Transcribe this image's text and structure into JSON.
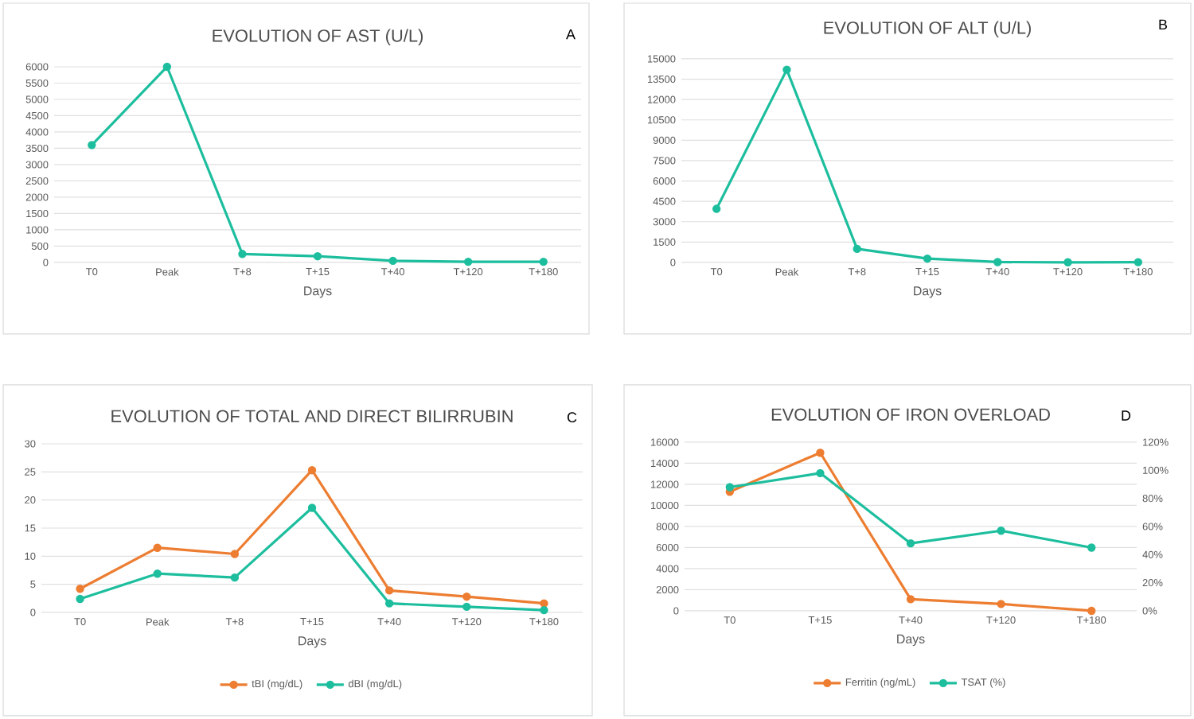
{
  "chart_data": [
    {
      "type": "line",
      "title": "EVOLUTION OF AST (U/L)",
      "xlabel": "Days",
      "annotations": [
        "A"
      ],
      "categories": [
        "T0",
        "Peak",
        "T+8",
        "T+15",
        "T+40",
        "T+120",
        "T+180"
      ],
      "series": [
        {
          "color": "#1dbe9e",
          "values": [
            3600,
            6000,
            260,
            190,
            50,
            20,
            20
          ]
        }
      ],
      "ylim": [
        0,
        6000
      ],
      "yticks": [
        0,
        500,
        1000,
        1500,
        2000,
        2500,
        3000,
        3500,
        4000,
        4500,
        5000,
        5500,
        6000
      ],
      "grid": "y",
      "marker": "circle",
      "legend": false
    },
    {
      "type": "line",
      "title": "EVOLUTION OF ALT (U/L)",
      "xlabel": "Days",
      "annotations": [
        "B"
      ],
      "categories": [
        "T0",
        "Peak",
        "T+8",
        "T+15",
        "T+40",
        "T+120",
        "T+180"
      ],
      "series": [
        {
          "color": "#1dbe9e",
          "values": [
            3950,
            14200,
            1000,
            280,
            30,
            10,
            20
          ]
        }
      ],
      "ylim": [
        0,
        15000
      ],
      "yticks": [
        0,
        1500,
        3000,
        4500,
        6000,
        7500,
        9000,
        10500,
        12000,
        13500,
        15000
      ],
      "grid": "y",
      "marker": "circle",
      "legend": false
    },
    {
      "type": "line",
      "title": "EVOLUTION OF TOTAL AND DIRECT BILIRRUBIN",
      "xlabel": "Days",
      "annotations": [
        "C"
      ],
      "categories": [
        "T0",
        "Peak",
        "T+8",
        "T+15",
        "T+40",
        "T+120",
        "T+180"
      ],
      "series": [
        {
          "name": "tBI (mg/dL)",
          "color": "#ed7d31",
          "values": [
            4.2,
            11.5,
            10.4,
            25.3,
            3.9,
            2.8,
            1.6
          ]
        },
        {
          "name": "dBI (mg/dL)",
          "color": "#1dbe9e",
          "values": [
            2.4,
            6.9,
            6.2,
            18.6,
            1.6,
            1.0,
            0.4
          ]
        }
      ],
      "ylim": [
        0,
        30
      ],
      "yticks": [
        0,
        5,
        10,
        15,
        20,
        25,
        30
      ],
      "grid": "y",
      "marker": "circle",
      "legend": "bottom"
    },
    {
      "type": "line",
      "title": "EVOLUTION OF IRON OVERLOAD",
      "xlabel": "Days",
      "annotations": [
        "D"
      ],
      "categories": [
        "T0",
        "T+15",
        "T+40",
        "T+120",
        "T+180"
      ],
      "series": [
        {
          "name": "Ferritin (ng/mL)",
          "color": "#ed7d31",
          "values": [
            11300,
            15000,
            1100,
            650,
            0
          ]
        },
        {
          "name": "TSAT (%)",
          "color": "#1dbe9e",
          "axis": "y2",
          "values": [
            88,
            98,
            48,
            57,
            45
          ]
        }
      ],
      "ylim": [
        0,
        16000
      ],
      "yticks": [
        0,
        2000,
        4000,
        6000,
        8000,
        10000,
        12000,
        14000,
        16000
      ],
      "y2lim": [
        0,
        120
      ],
      "y2ticks": [
        {
          "value": 0,
          "label": "0%"
        },
        {
          "value": 20,
          "label": "20%"
        },
        {
          "value": 40,
          "label": "40%"
        },
        {
          "value": 60,
          "label": "60%"
        },
        {
          "value": 80,
          "label": "80%"
        },
        {
          "value": 100,
          "label": "100%"
        },
        {
          "value": 120,
          "label": "120%"
        }
      ],
      "grid": "y",
      "marker": "circle",
      "legend": "bottom"
    }
  ]
}
